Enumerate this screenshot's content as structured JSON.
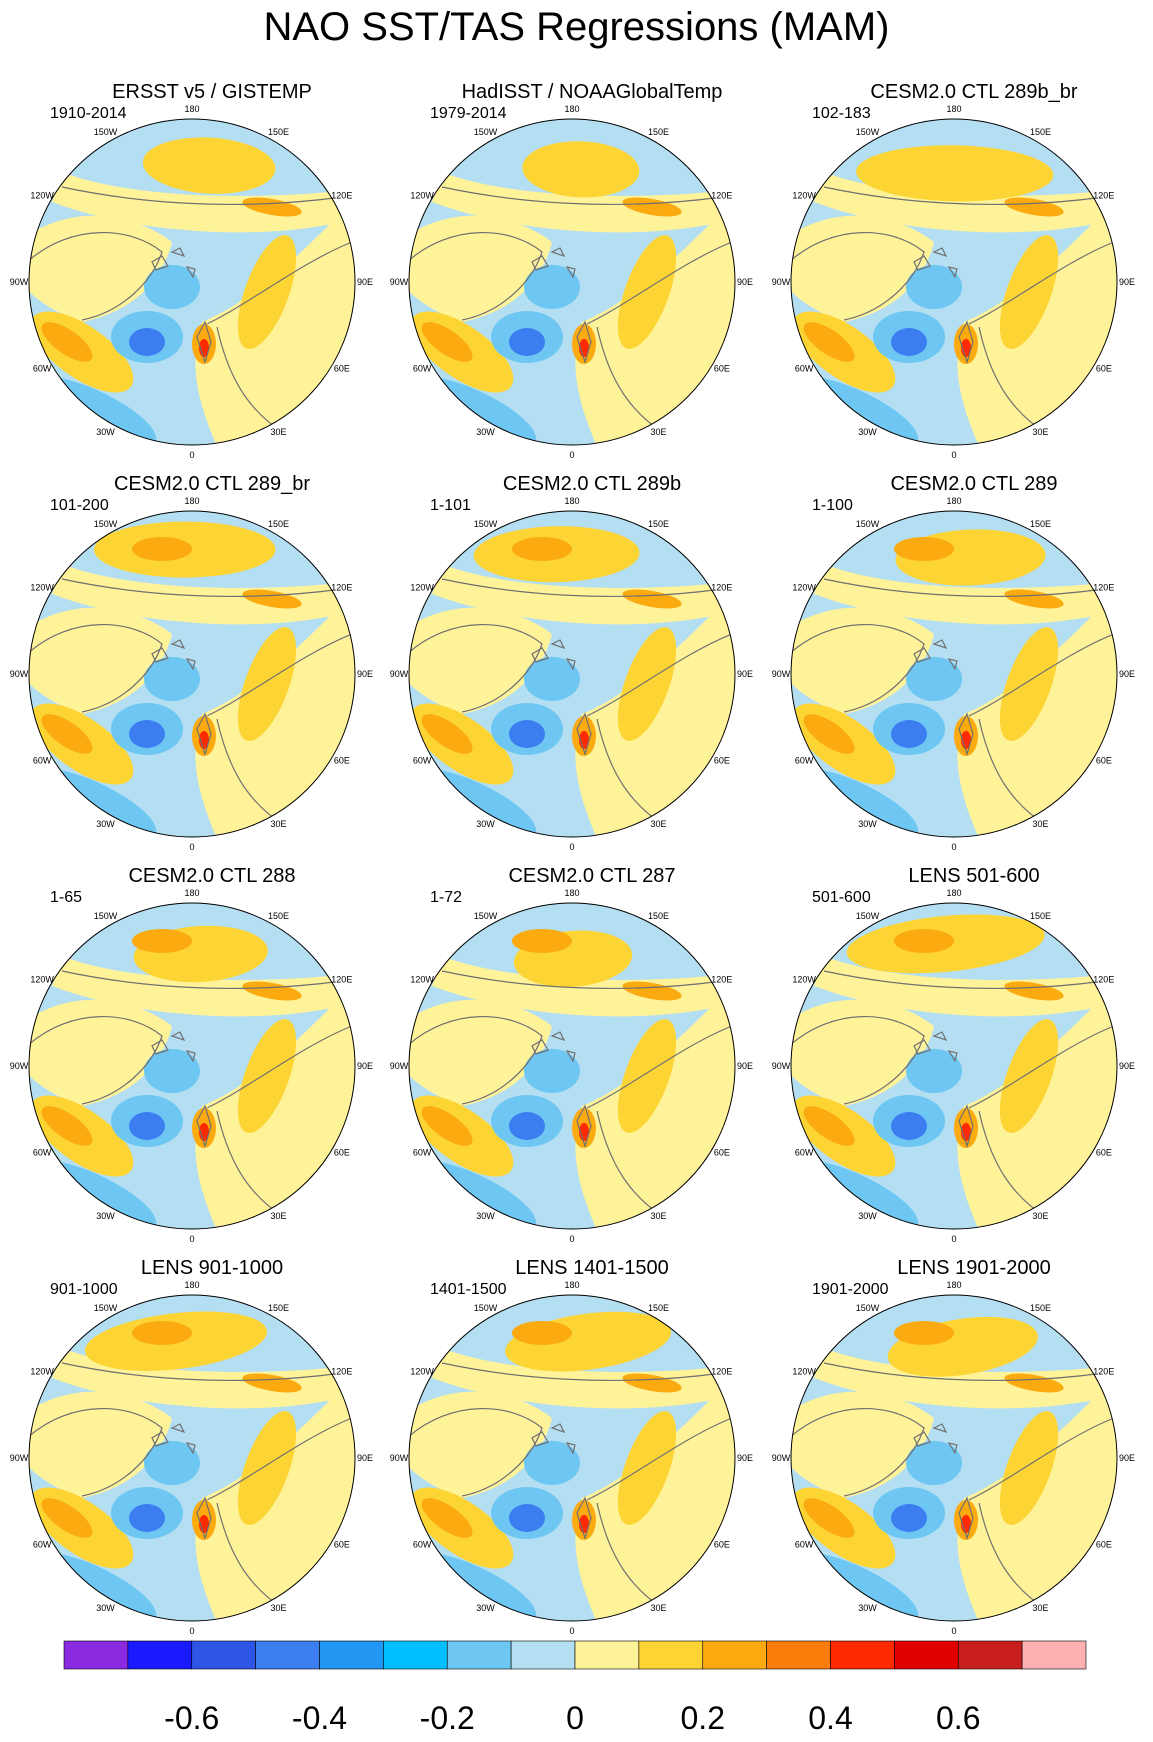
{
  "title": "NAO SST/TAS Regressions (MAM)",
  "lon_labels": {
    "top": "180",
    "bottom": "0",
    "left_upper_2": "150W",
    "left_upper_1": "120W",
    "left_mid": "90W",
    "left_lower_1": "60W",
    "left_lower_2": "30W",
    "right_upper_2": "150E",
    "right_upper_1": "120E",
    "right_mid": "90E",
    "right_lower_1": "60E",
    "right_lower_2": "30E"
  },
  "panels": [
    {
      "title": "ERSST v5 / GISTEMP",
      "years": "1910-2014"
    },
    {
      "title": "HadISST / NOAAGlobalTemp",
      "years": "1979-2014"
    },
    {
      "title": "CESM2.0 CTL 289b_br",
      "years": "102-183"
    },
    {
      "title": "CESM2.0 CTL 289_br",
      "years": "101-200"
    },
    {
      "title": "CESM2.0 CTL 289b",
      "years": "1-101"
    },
    {
      "title": "CESM2.0 CTL 289",
      "years": "1-100"
    },
    {
      "title": "CESM2.0 CTL 288",
      "years": "1-65"
    },
    {
      "title": "CESM2.0 CTL 287",
      "years": "1-72"
    },
    {
      "title": "LENS 501-600",
      "years": "501-600"
    },
    {
      "title": "LENS 901-1000",
      "years": "901-1000"
    },
    {
      "title": "LENS 1401-1500",
      "years": "1401-1500"
    },
    {
      "title": "LENS 1901-2000",
      "years": "1901-2000"
    }
  ],
  "colorbar": {
    "colors": [
      "#8a2be2",
      "#1a1aff",
      "#2e55e6",
      "#3c7ef0",
      "#2196f3",
      "#00bfff",
      "#6ec6f2",
      "#b4def2",
      "#fff39a",
      "#fcd535",
      "#fbaa10",
      "#fb7d0c",
      "#ff2a00",
      "#e00000",
      "#c81e1e",
      "#ffb0b0"
    ],
    "tick_labels": [
      "-0.6",
      "-0.4",
      "-0.2",
      "0",
      "0.2",
      "0.4",
      "0.6"
    ]
  },
  "anomaly_colors": {
    "ocean_base": "#b4def2",
    "land_base": "#fff39a",
    "warm": "#fcd535",
    "warm_strong": "#fbaa10",
    "hot": "#ff2a00",
    "cool": "#6ec6f2",
    "cold": "#3c7ef0",
    "coast": "#707070"
  }
}
